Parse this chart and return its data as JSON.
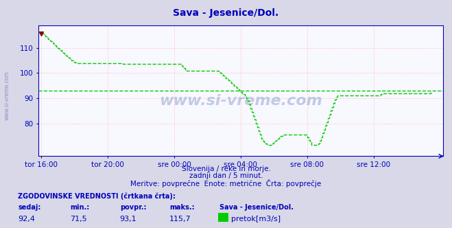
{
  "title": "Sava - Jesenice/Dol.",
  "x_tick_labels": [
    "tor 16:00",
    "tor 20:00",
    "sre 00:00",
    "sre 04:00",
    "sre 08:00",
    "sre 12:00"
  ],
  "x_tick_positions": [
    0,
    48,
    96,
    144,
    192,
    240
  ],
  "y_ticks": [
    80,
    90,
    100,
    110
  ],
  "ylim": [
    67,
    119
  ],
  "xlim": [
    -2,
    290
  ],
  "avg_value": 93.1,
  "line_color": "#00cc00",
  "bg_color": "#d8d8e8",
  "plot_bg_color": "#f8f8ff",
  "grid_color_v": "#ffb0b0",
  "grid_color_h": "#ffb0b0",
  "axis_color": "#0000bb",
  "title_color": "#0000bb",
  "watermark": "www.si-vreme.com",
  "text1": "Slovenija / reke in morje.",
  "text2": "zadnji dan / 5 minut.",
  "text3": "Meritve: povprečne  Enote: metrične  Črta: povprečje",
  "footer_label1": "ZGODOVINSKE VREDNOSTI (črtkana črta):",
  "footer_col_headers": [
    "sedaj:",
    "min.:",
    "povpr.:",
    "maks.:",
    "Sava - Jesenice/Dol."
  ],
  "footer_vals": [
    "92,4",
    "71,5",
    "93,1",
    "115,7"
  ],
  "footer_legend": "pretok[m3/s]",
  "data_y": [
    115.7,
    115.5,
    115.0,
    114.5,
    114.0,
    113.5,
    113.0,
    112.5,
    112.0,
    111.5,
    111.0,
    110.5,
    110.0,
    109.5,
    109.0,
    108.5,
    108.0,
    107.5,
    107.0,
    106.5,
    106.0,
    105.5,
    105.0,
    104.5,
    104.2,
    104.0,
    104.0,
    104.0,
    104.0,
    104.0,
    104.0,
    104.0,
    104.0,
    104.0,
    104.0,
    104.0,
    104.0,
    104.0,
    104.0,
    104.0,
    104.0,
    104.0,
    104.0,
    104.0,
    104.0,
    104.0,
    104.0,
    104.0,
    104.0,
    104.0,
    104.0,
    104.0,
    104.0,
    104.0,
    104.0,
    104.0,
    104.0,
    104.0,
    103.8,
    103.5,
    103.5,
    103.5,
    103.5,
    103.5,
    103.5,
    103.5,
    103.5,
    103.5,
    103.5,
    103.5,
    103.5,
    103.5,
    103.5,
    103.5,
    103.5,
    103.5,
    103.5,
    103.5,
    103.5,
    103.5,
    103.5,
    103.5,
    103.5,
    103.5,
    103.5,
    103.5,
    103.5,
    103.5,
    103.5,
    103.5,
    103.5,
    103.5,
    103.5,
    103.5,
    103.5,
    103.5,
    103.5,
    103.5,
    103.5,
    103.5,
    103.5,
    103.0,
    102.5,
    102.0,
    101.5,
    101.0,
    101.0,
    101.0,
    101.0,
    101.0,
    101.0,
    101.0,
    101.0,
    101.0,
    101.0,
    101.0,
    101.0,
    101.0,
    101.0,
    101.0,
    101.0,
    101.0,
    101.0,
    101.0,
    101.0,
    101.0,
    101.0,
    101.0,
    100.5,
    100.0,
    99.5,
    99.0,
    98.5,
    98.0,
    97.5,
    97.0,
    96.5,
    96.0,
    95.5,
    95.0,
    94.5,
    94.0,
    93.5,
    93.0,
    92.5,
    92.0,
    91.5,
    91.0,
    90.0,
    89.0,
    87.5,
    86.0,
    84.5,
    83.0,
    81.5,
    80.0,
    78.5,
    77.0,
    75.5,
    74.0,
    73.0,
    72.5,
    72.0,
    71.8,
    71.5,
    71.5,
    71.5,
    72.0,
    72.5,
    73.0,
    73.5,
    74.0,
    74.5,
    75.0,
    75.5,
    75.5,
    75.5,
    75.5,
    75.5,
    75.5,
    75.5,
    75.5,
    75.5,
    75.5,
    75.5,
    75.5,
    75.5,
    75.5,
    75.5,
    75.5,
    75.5,
    75.5,
    74.5,
    73.5,
    72.5,
    71.5,
    71.5,
    71.5,
    71.5,
    71.5,
    72.0,
    73.0,
    74.5,
    76.0,
    77.5,
    79.0,
    80.5,
    82.0,
    83.5,
    85.0,
    86.5,
    88.0,
    89.5,
    90.5,
    91.0,
    91.0,
    91.0,
    91.0,
    91.0,
    91.0,
    91.0,
    91.0,
    91.0,
    91.0,
    91.0,
    91.0,
    91.0,
    91.0,
    91.0,
    91.0,
    91.0,
    91.0,
    91.0,
    91.0,
    91.0,
    91.0,
    91.0,
    91.0,
    91.0,
    91.0,
    91.0,
    91.0,
    91.0,
    91.0,
    91.0,
    91.5,
    92.0,
    92.0,
    92.0,
    92.0,
    92.0,
    92.0,
    92.0,
    92.0,
    92.0,
    92.0,
    92.0,
    92.0,
    92.0,
    92.0,
    92.0,
    92.0,
    92.0,
    92.0,
    92.0,
    92.0,
    92.0,
    92.0,
    92.0,
    92.0,
    92.0,
    92.0,
    92.0,
    92.0,
    92.0,
    92.0,
    92.0,
    92.0,
    92.0,
    92.0,
    92.0,
    92.4
  ]
}
